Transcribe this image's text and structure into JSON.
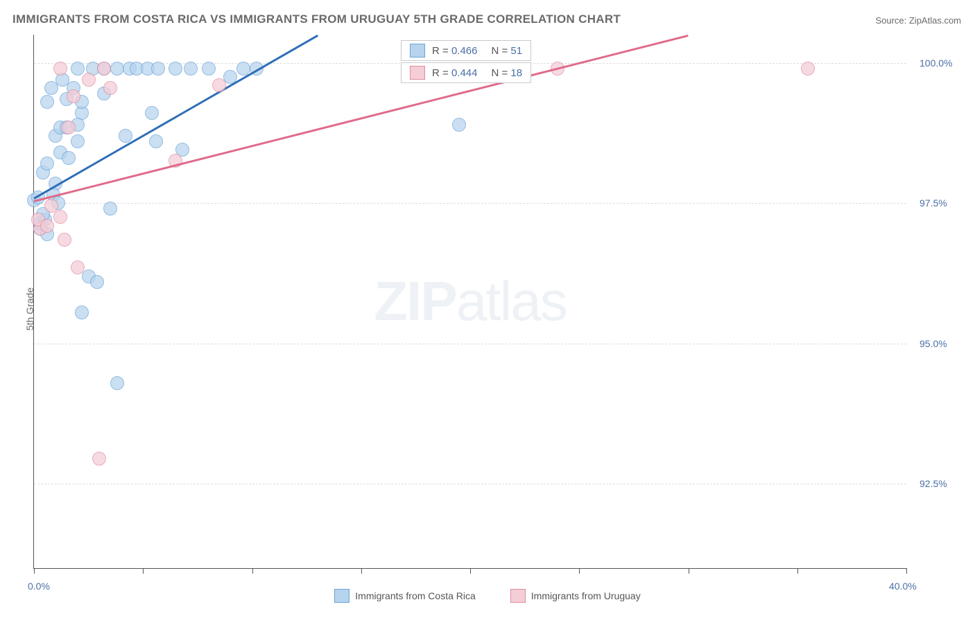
{
  "title": "IMMIGRANTS FROM COSTA RICA VS IMMIGRANTS FROM URUGUAY 5TH GRADE CORRELATION CHART",
  "source_label": "Source: ZipAtlas.com",
  "ylabel": "5th Grade",
  "watermark_bold": "ZIP",
  "watermark_light": "atlas",
  "chart": {
    "type": "scatter",
    "xlim": [
      0.0,
      40.0
    ],
    "ylim": [
      91.0,
      100.5
    ],
    "ytick_positions": [
      92.5,
      95.0,
      97.5,
      100.0
    ],
    "ytick_labels": [
      "92.5%",
      "95.0%",
      "97.5%",
      "100.0%"
    ],
    "xtick_positions": [
      0,
      5,
      10,
      15,
      20,
      25,
      30,
      35,
      40
    ],
    "x_axis_left_label": "0.0%",
    "x_axis_right_label": "40.0%",
    "background_color": "#ffffff",
    "grid_color": "#dddddd",
    "marker_radius": 9,
    "marker_opacity": 0.72
  },
  "series": [
    {
      "key": "costa_rica",
      "label": "Immigrants from Costa Rica",
      "fill": "#b6d4ee",
      "stroke": "#6ba3d6",
      "line_color": "#2f6fb7",
      "R": "0.466",
      "N": "51",
      "line": {
        "x1": 0.0,
        "y1": 97.6,
        "x2": 13.0,
        "y2": 100.5
      },
      "points": [
        [
          0.0,
          97.55
        ],
        [
          0.3,
          97.05
        ],
        [
          0.3,
          97.15
        ],
        [
          0.5,
          97.2
        ],
        [
          0.4,
          97.3
        ],
        [
          0.6,
          96.95
        ],
        [
          0.2,
          97.6
        ],
        [
          1.0,
          97.85
        ],
        [
          0.4,
          98.05
        ],
        [
          0.6,
          98.2
        ],
        [
          0.9,
          97.65
        ],
        [
          1.1,
          97.5
        ],
        [
          1.2,
          98.4
        ],
        [
          1.6,
          98.3
        ],
        [
          1.0,
          98.7
        ],
        [
          1.2,
          98.85
        ],
        [
          1.5,
          98.85
        ],
        [
          2.0,
          98.6
        ],
        [
          2.2,
          99.1
        ],
        [
          0.6,
          99.3
        ],
        [
          1.5,
          99.35
        ],
        [
          2.2,
          99.3
        ],
        [
          1.8,
          99.55
        ],
        [
          0.8,
          99.55
        ],
        [
          1.3,
          99.7
        ],
        [
          2.0,
          99.9
        ],
        [
          2.7,
          99.9
        ],
        [
          3.2,
          99.9
        ],
        [
          3.8,
          99.9
        ],
        [
          4.4,
          99.9
        ],
        [
          4.7,
          99.9
        ],
        [
          5.2,
          99.9
        ],
        [
          5.7,
          99.9
        ],
        [
          6.5,
          99.9
        ],
        [
          7.2,
          99.9
        ],
        [
          8.0,
          99.9
        ],
        [
          9.6,
          99.9
        ],
        [
          10.2,
          99.9
        ],
        [
          9.0,
          99.75
        ],
        [
          6.8,
          98.45
        ],
        [
          4.2,
          98.7
        ],
        [
          5.6,
          98.6
        ],
        [
          5.4,
          99.1
        ],
        [
          3.2,
          99.45
        ],
        [
          3.5,
          97.4
        ],
        [
          2.5,
          96.2
        ],
        [
          2.9,
          96.1
        ],
        [
          2.2,
          95.55
        ],
        [
          3.8,
          94.3
        ],
        [
          19.5,
          98.9
        ],
        [
          2.0,
          98.9
        ]
      ]
    },
    {
      "key": "uruguay",
      "label": "Immigrants from Uruguay",
      "fill": "#f5cdd6",
      "stroke": "#e08ba0",
      "line_color": "#e06a8a",
      "R": "0.444",
      "N": "18",
      "line": {
        "x1": 0.0,
        "y1": 97.55,
        "x2": 30.0,
        "y2": 100.5
      },
      "points": [
        [
          0.3,
          97.05
        ],
        [
          0.2,
          97.2
        ],
        [
          0.8,
          97.45
        ],
        [
          0.6,
          97.1
        ],
        [
          1.4,
          96.85
        ],
        [
          1.6,
          98.85
        ],
        [
          1.2,
          97.25
        ],
        [
          2.5,
          99.7
        ],
        [
          1.8,
          99.4
        ],
        [
          2.0,
          96.35
        ],
        [
          6.5,
          98.25
        ],
        [
          1.2,
          99.9
        ],
        [
          3.2,
          99.9
        ],
        [
          3.5,
          99.55
        ],
        [
          8.5,
          99.6
        ],
        [
          24.0,
          99.9
        ],
        [
          35.5,
          99.9
        ],
        [
          3.0,
          92.95
        ]
      ]
    }
  ],
  "stats_legend": {
    "r_label": "R =",
    "n_label": "N ="
  }
}
